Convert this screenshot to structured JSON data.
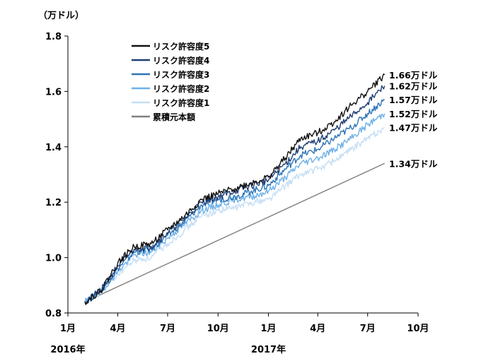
{
  "chart_data": {
    "type": "line",
    "y_unit_label": "（万ドル）",
    "ylim": [
      0.8,
      1.8
    ],
    "y_ticks": [
      "0.8",
      "1.0",
      "1.2",
      "1.4",
      "1.6",
      "1.8"
    ],
    "x_tick_labels": [
      "1月",
      "4月",
      "7月",
      "10月",
      "1月",
      "4月",
      "7月",
      "10月"
    ],
    "year_labels": [
      "2016年",
      "2017年"
    ],
    "x_start": "2016-01",
    "x_end": "2017-10",
    "grid": false,
    "legend_position": "top-left",
    "series": [
      {
        "name": "リスク許容度5",
        "color": "#111111",
        "end_label": "1.66万ドル",
        "points": [
          [
            "2016-02-01",
            0.84
          ],
          [
            "2016-03-01",
            0.88
          ],
          [
            "2016-04-01",
            0.98
          ],
          [
            "2016-05-01",
            1.04
          ],
          [
            "2016-06-01",
            1.05
          ],
          [
            "2016-07-01",
            1.1
          ],
          [
            "2016-08-01",
            1.15
          ],
          [
            "2016-09-01",
            1.21
          ],
          [
            "2016-10-01",
            1.23
          ],
          [
            "2016-11-01",
            1.25
          ],
          [
            "2016-12-01",
            1.27
          ],
          [
            "2017-01-01",
            1.29
          ],
          [
            "2017-02-01",
            1.36
          ],
          [
            "2017-03-01",
            1.43
          ],
          [
            "2017-04-01",
            1.45
          ],
          [
            "2017-05-01",
            1.49
          ],
          [
            "2017-06-01",
            1.55
          ],
          [
            "2017-07-01",
            1.6
          ],
          [
            "2017-08-01",
            1.66
          ]
        ]
      },
      {
        "name": "リスク許容度4",
        "color": "#1f3f73",
        "end_label": "1.62万ドル",
        "points": [
          [
            "2016-02-01",
            0.84
          ],
          [
            "2016-03-01",
            0.88
          ],
          [
            "2016-04-01",
            0.97
          ],
          [
            "2016-05-01",
            1.03
          ],
          [
            "2016-06-01",
            1.04
          ],
          [
            "2016-07-01",
            1.09
          ],
          [
            "2016-08-01",
            1.14
          ],
          [
            "2016-09-01",
            1.2
          ],
          [
            "2016-10-01",
            1.22
          ],
          [
            "2016-11-01",
            1.24
          ],
          [
            "2016-12-01",
            1.26
          ],
          [
            "2017-01-01",
            1.28
          ],
          [
            "2017-02-01",
            1.34
          ],
          [
            "2017-03-01",
            1.4
          ],
          [
            "2017-04-01",
            1.42
          ],
          [
            "2017-05-01",
            1.46
          ],
          [
            "2017-06-01",
            1.51
          ],
          [
            "2017-07-01",
            1.56
          ],
          [
            "2017-08-01",
            1.62
          ]
        ]
      },
      {
        "name": "リスク許容度3",
        "color": "#2e75b6",
        "end_label": "1.57万ドル",
        "points": [
          [
            "2016-02-01",
            0.84
          ],
          [
            "2016-03-01",
            0.88
          ],
          [
            "2016-04-01",
            0.96
          ],
          [
            "2016-05-01",
            1.02
          ],
          [
            "2016-06-01",
            1.03
          ],
          [
            "2016-07-01",
            1.08
          ],
          [
            "2016-08-01",
            1.13
          ],
          [
            "2016-09-01",
            1.19
          ],
          [
            "2016-10-01",
            1.21
          ],
          [
            "2016-11-01",
            1.22
          ],
          [
            "2016-12-01",
            1.24
          ],
          [
            "2017-01-01",
            1.26
          ],
          [
            "2017-02-01",
            1.32
          ],
          [
            "2017-03-01",
            1.37
          ],
          [
            "2017-04-01",
            1.39
          ],
          [
            "2017-05-01",
            1.43
          ],
          [
            "2017-06-01",
            1.47
          ],
          [
            "2017-07-01",
            1.52
          ],
          [
            "2017-08-01",
            1.57
          ]
        ]
      },
      {
        "name": "リスク許容度2",
        "color": "#6fb0e8",
        "end_label": "1.52万ドル",
        "points": [
          [
            "2016-02-01",
            0.84
          ],
          [
            "2016-03-01",
            0.88
          ],
          [
            "2016-04-01",
            0.95
          ],
          [
            "2016-05-01",
            1.01
          ],
          [
            "2016-06-01",
            1.02
          ],
          [
            "2016-07-01",
            1.07
          ],
          [
            "2016-08-01",
            1.12
          ],
          [
            "2016-09-01",
            1.17
          ],
          [
            "2016-10-01",
            1.19
          ],
          [
            "2016-11-01",
            1.21
          ],
          [
            "2016-12-01",
            1.22
          ],
          [
            "2017-01-01",
            1.24
          ],
          [
            "2017-02-01",
            1.29
          ],
          [
            "2017-03-01",
            1.34
          ],
          [
            "2017-04-01",
            1.36
          ],
          [
            "2017-05-01",
            1.39
          ],
          [
            "2017-06-01",
            1.43
          ],
          [
            "2017-07-01",
            1.48
          ],
          [
            "2017-08-01",
            1.52
          ]
        ]
      },
      {
        "name": "リスク許容度1",
        "color": "#c5def5",
        "end_label": "1.47万ドル",
        "points": [
          [
            "2016-02-01",
            0.84
          ],
          [
            "2016-03-01",
            0.87
          ],
          [
            "2016-04-01",
            0.94
          ],
          [
            "2016-05-01",
            0.99
          ],
          [
            "2016-06-01",
            1.0
          ],
          [
            "2016-07-01",
            1.05
          ],
          [
            "2016-08-01",
            1.1
          ],
          [
            "2016-09-01",
            1.15
          ],
          [
            "2016-10-01",
            1.17
          ],
          [
            "2016-11-01",
            1.18
          ],
          [
            "2016-12-01",
            1.2
          ],
          [
            "2017-01-01",
            1.21
          ],
          [
            "2017-02-01",
            1.26
          ],
          [
            "2017-03-01",
            1.3
          ],
          [
            "2017-04-01",
            1.32
          ],
          [
            "2017-05-01",
            1.35
          ],
          [
            "2017-06-01",
            1.39
          ],
          [
            "2017-07-01",
            1.43
          ],
          [
            "2017-08-01",
            1.47
          ]
        ]
      },
      {
        "name": "累積元本額",
        "color": "#808080",
        "end_label": "1.34万ドル",
        "points": [
          [
            "2016-02-01",
            0.84
          ],
          [
            "2017-08-01",
            1.34
          ]
        ]
      }
    ]
  }
}
